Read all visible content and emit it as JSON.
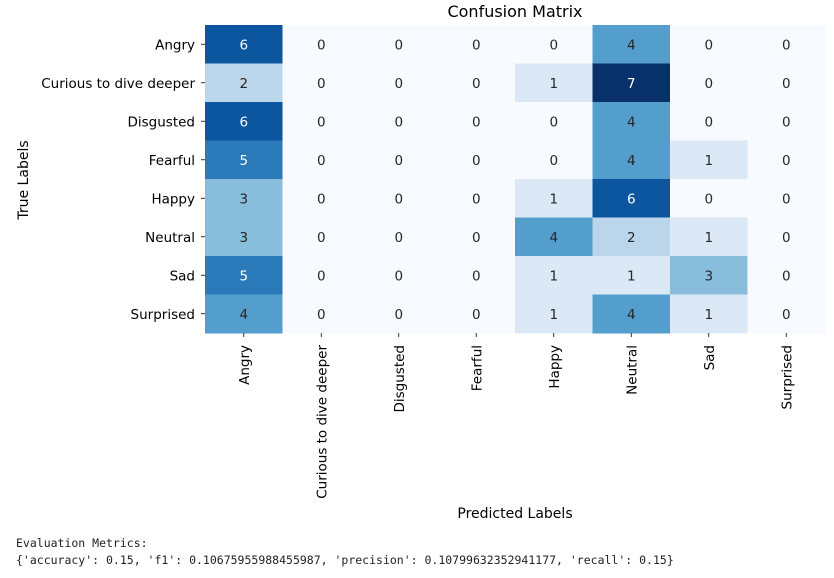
{
  "chart_data": {
    "type": "heatmap",
    "title": "Confusion Matrix",
    "xlabel": "Predicted Labels",
    "ylabel": "True Labels",
    "row_labels": [
      "Angry",
      "Curious to dive deeper",
      "Disgusted",
      "Fearful",
      "Happy",
      "Neutral",
      "Sad",
      "Surprised"
    ],
    "col_labels": [
      "Angry",
      "Curious to dive deeper",
      "Disgusted",
      "Fearful",
      "Happy",
      "Neutral",
      "Sad",
      "Surprised"
    ],
    "values": [
      [
        6,
        0,
        0,
        0,
        0,
        4,
        0,
        0
      ],
      [
        2,
        0,
        0,
        0,
        1,
        7,
        0,
        0
      ],
      [
        6,
        0,
        0,
        0,
        0,
        4,
        0,
        0
      ],
      [
        5,
        0,
        0,
        0,
        0,
        4,
        1,
        0
      ],
      [
        3,
        0,
        0,
        0,
        1,
        6,
        0,
        0
      ],
      [
        3,
        0,
        0,
        0,
        4,
        2,
        1,
        0
      ],
      [
        5,
        0,
        0,
        0,
        1,
        1,
        3,
        0
      ],
      [
        4,
        0,
        0,
        0,
        1,
        4,
        1,
        0
      ]
    ],
    "colormap": "Blues",
    "value_range": [
      0,
      7
    ]
  },
  "metrics": {
    "heading": "Evaluation Metrics:",
    "line": "{'accuracy': 0.15, 'f1': 0.10675955988455987, 'precision': 0.10799632352941177, 'recall': 0.15}"
  }
}
